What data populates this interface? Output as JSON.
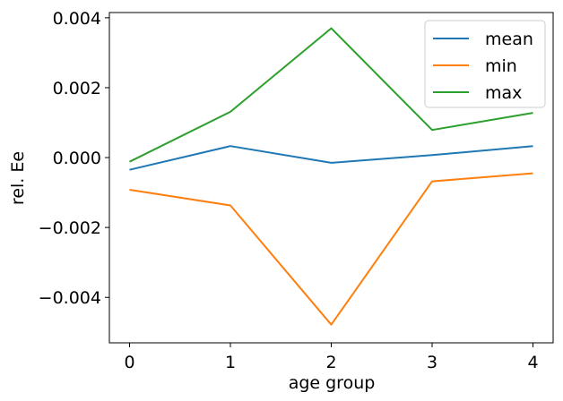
{
  "chart_data": {
    "type": "line",
    "x": [
      0,
      1,
      2,
      3,
      4
    ],
    "xlabel": "age group",
    "ylabel": "rel. Ee",
    "xlim": [
      -0.2,
      4.2
    ],
    "ylim": [
      -0.0053,
      0.00415
    ],
    "x_ticks": [
      0,
      1,
      2,
      3,
      4
    ],
    "x_tick_labels": [
      "0",
      "1",
      "2",
      "3",
      "4"
    ],
    "y_ticks": [
      -0.004,
      -0.002,
      0.0,
      0.002,
      0.004
    ],
    "y_tick_labels": [
      "−0.004",
      "−0.002",
      "0.000",
      "0.002",
      "0.004"
    ],
    "grid": false,
    "legend_position": "top-right",
    "series": [
      {
        "name": "mean",
        "color": "#1f77b4",
        "values": [
          -0.00035,
          0.00033,
          -0.00015,
          7e-05,
          0.00033
        ]
      },
      {
        "name": "min",
        "color": "#ff7f0e",
        "values": [
          -0.00092,
          -0.00137,
          -0.00478,
          -0.00068,
          -0.00045
        ]
      },
      {
        "name": "max",
        "color": "#2ca02c",
        "values": [
          -0.00012,
          0.00131,
          0.0037,
          0.00079,
          0.00128
        ]
      }
    ]
  }
}
